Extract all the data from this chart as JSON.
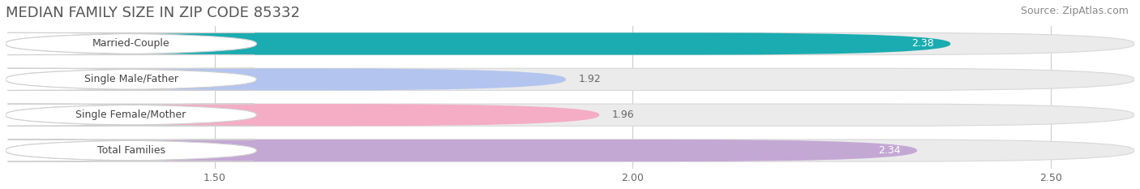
{
  "title": "MEDIAN FAMILY SIZE IN ZIP CODE 85332",
  "source": "Source: ZipAtlas.com",
  "categories": [
    "Married-Couple",
    "Single Male/Father",
    "Single Female/Mother",
    "Total Families"
  ],
  "values": [
    2.38,
    1.92,
    1.96,
    2.34
  ],
  "bar_colors": [
    "#1aacb0",
    "#b3c5ee",
    "#f4adc4",
    "#c4a8d4"
  ],
  "value_colors": [
    "#ffffff",
    "#666666",
    "#666666",
    "#ffffff"
  ],
  "xmin": 1.25,
  "xmax": 2.6,
  "xticks": [
    1.5,
    2.0,
    2.5
  ],
  "bar_height": 0.62,
  "bar_gap": 0.12,
  "background_color": "#ffffff",
  "bar_bg_color": "#ebebeb",
  "title_fontsize": 13,
  "source_fontsize": 9,
  "label_fontsize": 9,
  "value_fontsize": 9
}
